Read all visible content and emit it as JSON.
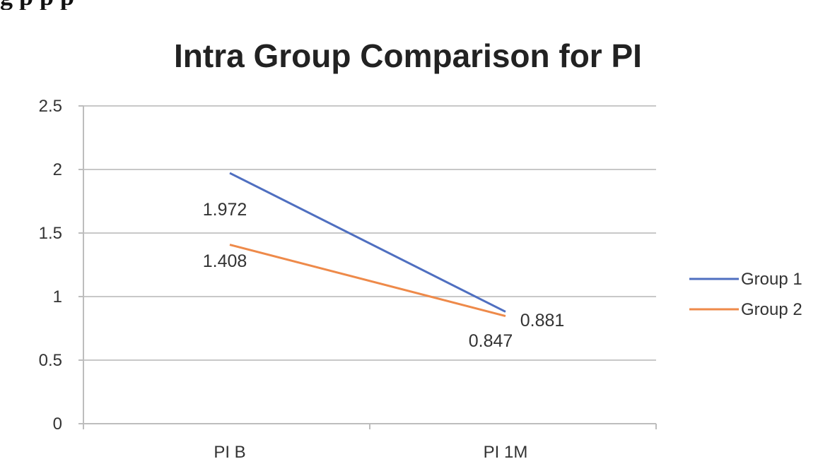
{
  "caption_fragment": "g                        p        p                      p",
  "chart_data": {
    "type": "line",
    "title": "Intra Group Comparison for PI",
    "categories": [
      "PI B",
      "PI 1M"
    ],
    "series": [
      {
        "name": "Group 1",
        "values": [
          1.972,
          0.881
        ],
        "labels": [
          "1.972",
          "0.881"
        ]
      },
      {
        "name": "Group 2",
        "values": [
          1.408,
          0.847
        ],
        "labels": [
          "1.408",
          "0.847"
        ]
      }
    ],
    "ylim": [
      0,
      2.5
    ],
    "yticks": [
      0,
      0.5,
      1,
      1.5,
      2,
      2.5
    ],
    "ytick_labels": [
      "0",
      "0.5",
      "1",
      "1.5",
      "2",
      "2.5"
    ],
    "grid": true,
    "legend": "right",
    "colors": {
      "Group 1": "#4f6fc0",
      "Group 2": "#ee8a4a",
      "grid": "#c8c8c8",
      "axis": "#bdbdbd",
      "text": "#333333"
    }
  }
}
